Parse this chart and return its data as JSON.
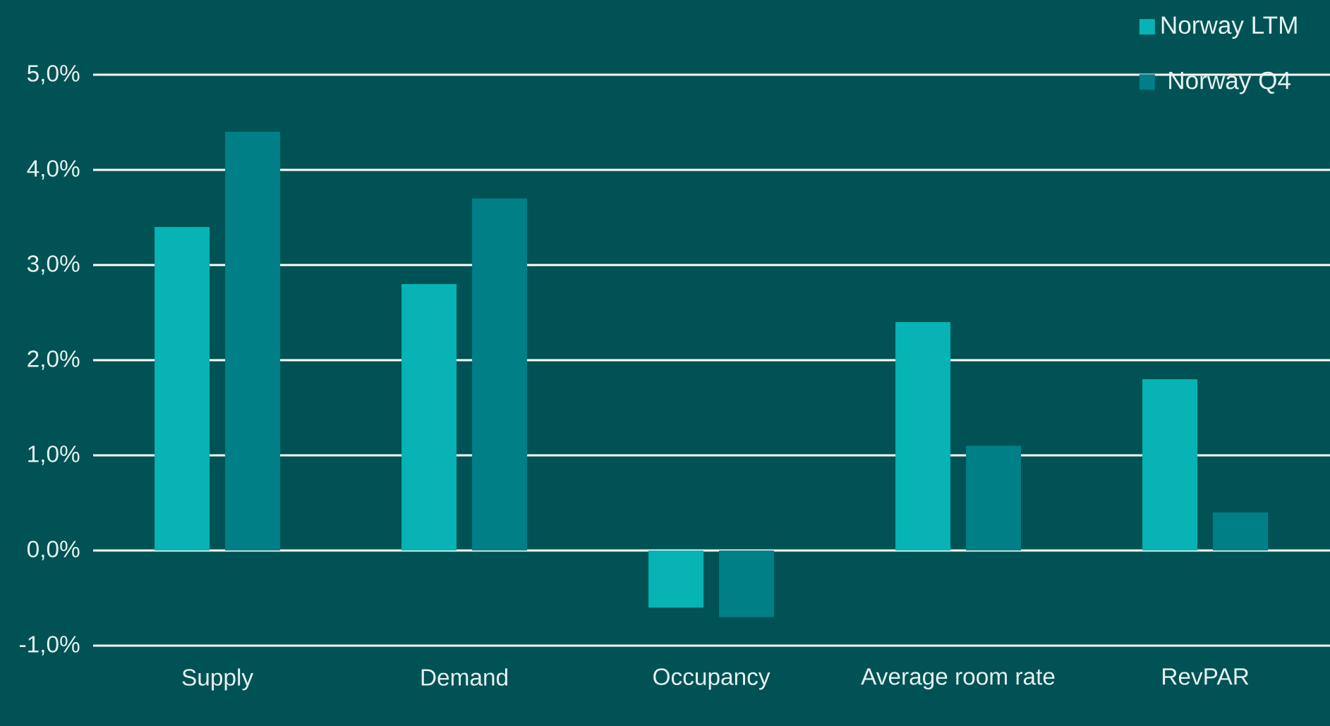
{
  "chart_data": {
    "type": "bar",
    "categories": [
      "Supply",
      "Demand",
      "Occupancy",
      "Average room rate",
      "RevPAR"
    ],
    "series": [
      {
        "name": "Norway LTM",
        "color": "#07b3b4",
        "values": [
          3.4,
          2.8,
          -0.6,
          2.4,
          1.8
        ]
      },
      {
        "name": "Norway Q4",
        "color": "#007f86",
        "values": [
          4.4,
          3.7,
          -0.7,
          1.1,
          0.4
        ]
      }
    ],
    "ylim": [
      -1,
      5
    ],
    "yticks": [
      {
        "value": -1,
        "label": "-1,0%"
      },
      {
        "value": 0,
        "label": "0,0%"
      },
      {
        "value": 1,
        "label": "1,0%"
      },
      {
        "value": 2,
        "label": "2,0%"
      },
      {
        "value": 3,
        "label": "3,0%"
      },
      {
        "value": 4,
        "label": "4,0%"
      },
      {
        "value": 5,
        "label": "5,0%"
      }
    ],
    "grid": "y",
    "legend": "top right"
  }
}
